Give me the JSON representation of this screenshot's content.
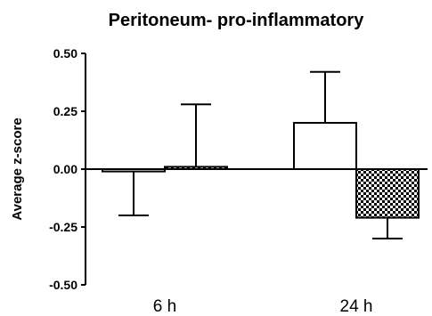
{
  "chart_data": {
    "type": "bar",
    "title": "Peritoneum- pro-inflammatory",
    "xlabel": "",
    "ylabel": "Average z-score",
    "categories": [
      "6 h",
      "24 h"
    ],
    "ylim": [
      -0.5,
      0.5
    ],
    "yticks": [
      "0.50",
      "0.25",
      "0.00",
      "-0.25",
      "-0.50"
    ],
    "ytick_values": [
      0.5,
      0.25,
      0.0,
      -0.25,
      -0.5
    ],
    "grid": false,
    "series": [
      {
        "fill": "#ffffff",
        "pattern": "none",
        "values": [
          -0.01,
          0.2
        ],
        "error_upper": [
          0.0,
          0.22
        ],
        "error_lower": [
          0.19,
          0.0
        ]
      },
      {
        "fill": "#ffffff",
        "pattern": "checkerboard",
        "values": [
          0.01,
          -0.21
        ],
        "error_upper": [
          0.27,
          0.0
        ],
        "error_lower": [
          0.0,
          0.09
        ]
      }
    ]
  }
}
